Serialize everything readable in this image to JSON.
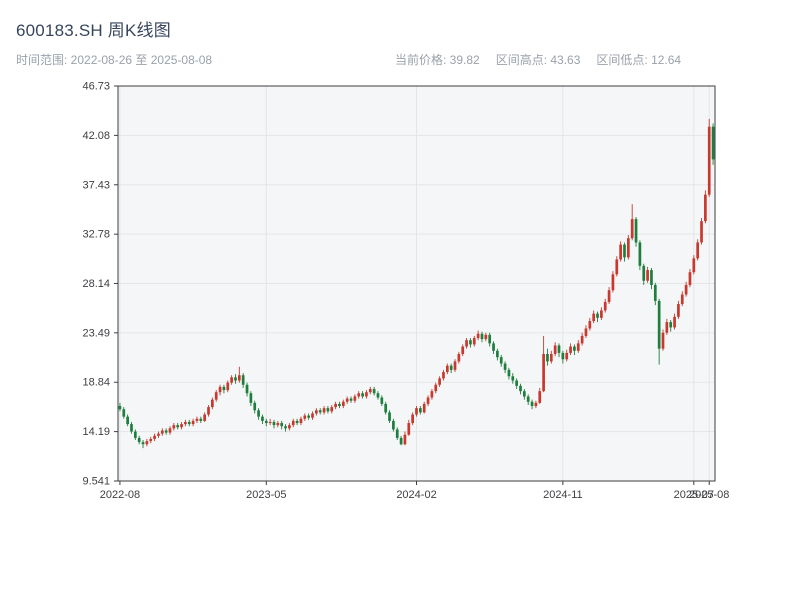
{
  "header": {
    "title": "600183.SH 周K线图",
    "time_range": "时间范围: 2022-08-26 至 2025-08-08",
    "stats": [
      "当前价格: 39.82",
      "区间高点: 43.63",
      "区间低点: 12.64"
    ]
  },
  "chart_data": {
    "type": "candlestick",
    "symbol": "600183.SH",
    "period": "weekly",
    "title": "600183.SH 周K线图",
    "current_price": 39.82,
    "range_high": 43.63,
    "range_low": 12.64,
    "ylim": [
      9.541,
      46.73
    ],
    "grid": true,
    "y_ticks": [
      "46.73",
      "42.08",
      "37.43",
      "32.78",
      "28.14",
      "23.49",
      "18.84",
      "14.19",
      "9.541"
    ],
    "x_ticks": [
      {
        "index": 0,
        "label": "2022-08"
      },
      {
        "index": 38,
        "label": "2023-05"
      },
      {
        "index": 77,
        "label": "2024-02"
      },
      {
        "index": 115,
        "label": "2024-11"
      },
      {
        "index": 149,
        "label": "2025-07"
      },
      {
        "index": 153,
        "label": "2025-08"
      }
    ],
    "colors": {
      "up": "#c8382e",
      "down": "#1e7e3e"
    },
    "candles": [
      [
        16.6,
        16.9,
        16.1,
        16.3
      ],
      [
        16.3,
        16.5,
        15.4,
        15.6
      ],
      [
        15.6,
        15.8,
        14.7,
        14.9
      ],
      [
        14.9,
        15.1,
        14.0,
        14.2
      ],
      [
        14.2,
        14.4,
        13.4,
        13.6
      ],
      [
        13.6,
        13.8,
        13.0,
        13.2
      ],
      [
        13.2,
        13.4,
        12.64,
        13.0
      ],
      [
        13.0,
        13.5,
        12.8,
        13.3
      ],
      [
        13.3,
        13.7,
        13.1,
        13.5
      ],
      [
        13.5,
        14.0,
        13.3,
        13.8
      ],
      [
        13.8,
        14.2,
        13.6,
        14.0
      ],
      [
        14.0,
        14.5,
        13.8,
        14.3
      ],
      [
        14.3,
        14.5,
        13.9,
        14.1
      ],
      [
        14.1,
        14.7,
        13.9,
        14.5
      ],
      [
        14.5,
        15.0,
        14.3,
        14.8
      ],
      [
        14.8,
        15.0,
        14.4,
        14.6
      ],
      [
        14.6,
        15.1,
        14.4,
        14.9
      ],
      [
        14.9,
        15.3,
        14.7,
        15.1
      ],
      [
        15.1,
        15.3,
        14.7,
        14.9
      ],
      [
        14.9,
        15.4,
        14.7,
        15.2
      ],
      [
        15.2,
        15.6,
        15.0,
        15.4
      ],
      [
        15.4,
        15.6,
        15.0,
        15.2
      ],
      [
        15.2,
        16.0,
        15.1,
        15.8
      ],
      [
        15.8,
        16.7,
        15.6,
        16.5
      ],
      [
        16.5,
        17.4,
        16.3,
        17.2
      ],
      [
        17.2,
        18.1,
        17.0,
        17.9
      ],
      [
        17.9,
        18.6,
        17.6,
        18.4
      ],
      [
        18.4,
        18.6,
        17.8,
        18.1
      ],
      [
        18.1,
        19.0,
        17.9,
        18.8
      ],
      [
        18.8,
        19.5,
        18.6,
        19.3
      ],
      [
        19.3,
        19.6,
        18.7,
        19.0
      ],
      [
        19.0,
        20.3,
        18.8,
        19.5
      ],
      [
        19.5,
        19.7,
        18.3,
        18.6
      ],
      [
        18.6,
        18.8,
        17.5,
        17.8
      ],
      [
        17.8,
        18.0,
        16.6,
        16.9
      ],
      [
        16.9,
        17.1,
        15.9,
        16.2
      ],
      [
        16.2,
        16.4,
        15.3,
        15.6
      ],
      [
        15.6,
        15.8,
        14.9,
        15.2
      ],
      [
        15.2,
        15.4,
        14.7,
        15.0
      ],
      [
        15.0,
        15.4,
        14.8,
        15.1
      ],
      [
        15.1,
        15.3,
        14.5,
        14.8
      ],
      [
        14.8,
        15.2,
        14.6,
        15.0
      ],
      [
        15.0,
        15.2,
        14.4,
        14.7
      ],
      [
        14.7,
        14.9,
        14.2,
        14.5
      ],
      [
        14.5,
        15.0,
        14.3,
        14.8
      ],
      [
        14.8,
        15.4,
        14.6,
        15.2
      ],
      [
        15.2,
        15.4,
        14.8,
        15.0
      ],
      [
        15.0,
        15.6,
        14.8,
        15.4
      ],
      [
        15.4,
        15.9,
        15.2,
        15.7
      ],
      [
        15.7,
        15.9,
        15.3,
        15.5
      ],
      [
        15.5,
        16.1,
        15.3,
        15.9
      ],
      [
        15.9,
        16.4,
        15.7,
        16.2
      ],
      [
        16.2,
        16.4,
        15.8,
        16.0
      ],
      [
        16.0,
        16.6,
        15.8,
        16.4
      ],
      [
        16.4,
        16.6,
        15.9,
        16.1
      ],
      [
        16.1,
        16.7,
        15.9,
        16.5
      ],
      [
        16.5,
        17.0,
        16.3,
        16.8
      ],
      [
        16.8,
        17.0,
        16.4,
        16.6
      ],
      [
        16.6,
        17.2,
        16.4,
        17.0
      ],
      [
        17.0,
        17.5,
        16.8,
        17.3
      ],
      [
        17.3,
        17.5,
        16.9,
        17.1
      ],
      [
        17.1,
        17.7,
        16.9,
        17.5
      ],
      [
        17.5,
        18.0,
        17.3,
        17.8
      ],
      [
        17.8,
        18.0,
        17.3,
        17.5
      ],
      [
        17.5,
        18.1,
        17.3,
        17.9
      ],
      [
        17.9,
        18.4,
        17.7,
        18.2
      ],
      [
        18.2,
        18.4,
        17.6,
        17.8
      ],
      [
        17.8,
        18.0,
        17.2,
        17.4
      ],
      [
        17.4,
        17.6,
        16.6,
        16.8
      ],
      [
        16.8,
        17.0,
        15.8,
        16.0
      ],
      [
        16.0,
        16.2,
        15.0,
        15.2
      ],
      [
        15.2,
        15.4,
        14.2,
        14.4
      ],
      [
        14.4,
        14.6,
        13.4,
        13.6
      ],
      [
        13.6,
        13.8,
        12.9,
        13.0
      ],
      [
        13.0,
        14.2,
        12.9,
        13.9
      ],
      [
        13.9,
        15.3,
        13.8,
        15.0
      ],
      [
        15.0,
        16.0,
        14.8,
        15.8
      ],
      [
        15.8,
        16.6,
        15.6,
        16.4
      ],
      [
        16.4,
        16.6,
        15.8,
        16.0
      ],
      [
        16.0,
        17.0,
        15.9,
        16.8
      ],
      [
        16.8,
        17.6,
        16.6,
        17.4
      ],
      [
        17.4,
        18.2,
        17.2,
        18.0
      ],
      [
        18.0,
        18.8,
        17.8,
        18.6
      ],
      [
        18.6,
        19.4,
        18.4,
        19.2
      ],
      [
        19.2,
        20.0,
        19.0,
        19.8
      ],
      [
        19.8,
        20.6,
        19.6,
        20.4
      ],
      [
        20.4,
        20.6,
        19.7,
        20.0
      ],
      [
        20.0,
        21.0,
        19.8,
        20.8
      ],
      [
        20.8,
        21.7,
        20.6,
        21.5
      ],
      [
        21.5,
        22.4,
        21.3,
        22.2
      ],
      [
        22.2,
        23.0,
        22.0,
        22.8
      ],
      [
        22.8,
        23.0,
        22.1,
        22.4
      ],
      [
        22.4,
        23.2,
        22.2,
        23.0
      ],
      [
        23.0,
        23.7,
        22.8,
        23.4
      ],
      [
        23.4,
        23.6,
        22.6,
        22.9
      ],
      [
        22.9,
        23.5,
        22.7,
        23.3
      ],
      [
        23.3,
        23.5,
        22.2,
        22.5
      ],
      [
        22.5,
        22.7,
        21.5,
        21.8
      ],
      [
        21.8,
        22.0,
        20.9,
        21.2
      ],
      [
        21.2,
        21.4,
        20.3,
        20.6
      ],
      [
        20.6,
        20.8,
        19.7,
        20.0
      ],
      [
        20.0,
        20.2,
        19.1,
        19.4
      ],
      [
        19.4,
        19.7,
        18.7,
        19.0
      ],
      [
        19.0,
        19.2,
        18.2,
        18.5
      ],
      [
        18.5,
        18.7,
        17.7,
        18.0
      ],
      [
        18.0,
        18.2,
        17.2,
        17.5
      ],
      [
        17.5,
        17.7,
        16.7,
        17.0
      ],
      [
        17.0,
        17.2,
        16.3,
        16.6
      ],
      [
        16.6,
        17.1,
        16.4,
        16.9
      ],
      [
        16.9,
        18.3,
        16.8,
        18.0
      ],
      [
        18.0,
        23.2,
        17.9,
        21.5
      ],
      [
        21.5,
        22.0,
        20.4,
        20.8
      ],
      [
        20.8,
        21.8,
        20.6,
        21.5
      ],
      [
        21.5,
        22.6,
        21.3,
        22.3
      ],
      [
        22.3,
        22.5,
        21.2,
        21.6
      ],
      [
        21.6,
        21.8,
        20.6,
        21.0
      ],
      [
        21.0,
        21.9,
        20.8,
        21.6
      ],
      [
        21.6,
        22.5,
        21.4,
        22.2
      ],
      [
        22.2,
        22.4,
        21.4,
        21.8
      ],
      [
        21.8,
        22.8,
        21.6,
        22.5
      ],
      [
        22.5,
        23.5,
        22.3,
        23.2
      ],
      [
        23.2,
        24.2,
        23.0,
        23.9
      ],
      [
        23.9,
        24.9,
        23.7,
        24.6
      ],
      [
        24.6,
        25.6,
        24.4,
        25.3
      ],
      [
        25.3,
        25.5,
        24.5,
        24.9
      ],
      [
        24.9,
        25.9,
        24.7,
        25.6
      ],
      [
        25.6,
        26.7,
        25.4,
        26.4
      ],
      [
        26.4,
        27.8,
        26.2,
        27.5
      ],
      [
        27.5,
        29.3,
        27.3,
        29.0
      ],
      [
        29.0,
        30.7,
        28.8,
        30.4
      ],
      [
        30.4,
        32.1,
        30.2,
        31.8
      ],
      [
        31.8,
        32.0,
        30.2,
        30.6
      ],
      [
        30.6,
        32.7,
        30.4,
        32.4
      ],
      [
        32.4,
        35.6,
        32.2,
        34.2
      ],
      [
        34.2,
        34.4,
        31.6,
        32.0
      ],
      [
        32.0,
        32.2,
        29.4,
        29.8
      ],
      [
        29.8,
        30.0,
        28.0,
        28.4
      ],
      [
        28.4,
        29.7,
        28.2,
        29.4
      ],
      [
        29.4,
        29.6,
        27.6,
        28.0
      ],
      [
        28.0,
        28.2,
        26.1,
        26.5
      ],
      [
        26.5,
        26.7,
        20.5,
        22.0
      ],
      [
        22.0,
        23.8,
        21.8,
        23.5
      ],
      [
        23.5,
        24.8,
        23.3,
        24.5
      ],
      [
        24.5,
        24.7,
        23.6,
        24.0
      ],
      [
        24.0,
        25.3,
        23.8,
        25.0
      ],
      [
        25.0,
        26.5,
        24.8,
        26.2
      ],
      [
        26.2,
        27.4,
        26.0,
        27.1
      ],
      [
        27.1,
        28.3,
        26.9,
        28.0
      ],
      [
        28.0,
        29.5,
        27.8,
        29.2
      ],
      [
        29.2,
        30.8,
        29.0,
        30.5
      ],
      [
        30.5,
        32.3,
        30.3,
        32.0
      ],
      [
        32.0,
        34.3,
        31.8,
        34.0
      ],
      [
        34.0,
        36.9,
        33.8,
        36.5
      ],
      [
        36.5,
        43.63,
        36.3,
        42.9
      ],
      [
        42.9,
        43.2,
        39.3,
        39.82
      ]
    ]
  }
}
